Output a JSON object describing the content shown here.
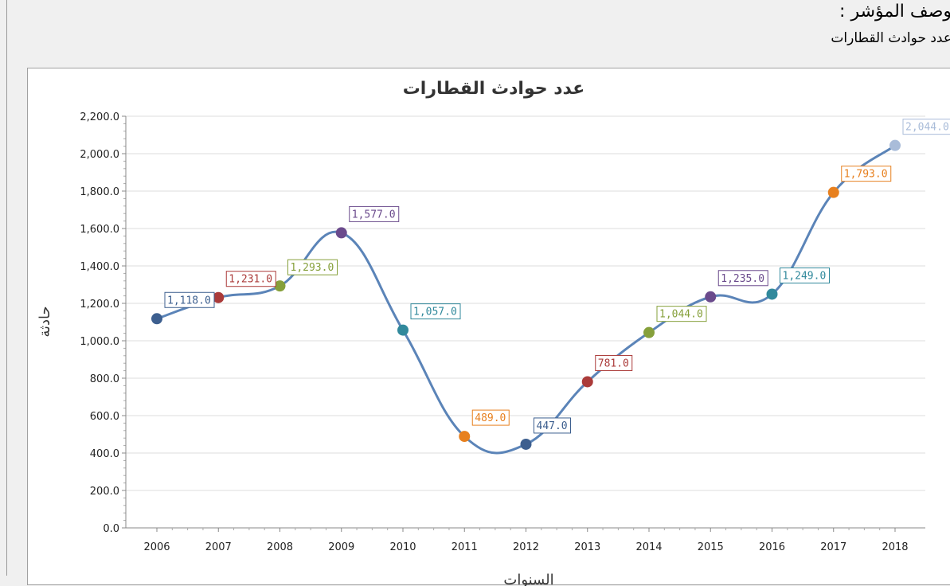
{
  "indicator": {
    "heading": "وصف المؤشر :",
    "value": "عدد حوادث القطارات"
  },
  "chart_data": {
    "type": "line",
    "title": "عدد حوادث القطارات",
    "xlabel": "السنوات",
    "ylabel": "حادثة",
    "categories": [
      "2006",
      "2007",
      "2008",
      "2009",
      "2010",
      "2011",
      "2012",
      "2013",
      "2014",
      "2015",
      "2016",
      "2017",
      "2018"
    ],
    "series": [
      {
        "values": [
          1118,
          1231,
          1293,
          1577,
          1057,
          489,
          447,
          781,
          1044,
          1235,
          1249,
          1793,
          2044
        ]
      }
    ],
    "data_labels": [
      "1,118.0",
      "1,231.0",
      "1,293.0",
      "1,577.0",
      "1,057.0",
      "489.0",
      "447.0",
      "781.0",
      "1,044.0",
      "1,235.0",
      "1,249.0",
      "1,793.0",
      "2,044.0"
    ],
    "ylim": [
      0,
      2200
    ],
    "yticks": [
      "0.0",
      "200.0",
      "400.0",
      "600.0",
      "800.0",
      "1,000.0",
      "1,200.0",
      "1,400.0",
      "1,600.0",
      "1,800.0",
      "2,000.0",
      "2,200.0"
    ],
    "grid": true,
    "line_color": "#5b84b8",
    "point_colors": [
      "#3d5f8f",
      "#ab3b3a",
      "#86a03b",
      "#6a4a8c",
      "#31899c",
      "#e7801f",
      "#3d5f8f",
      "#ab3b3a",
      "#86a03b",
      "#6a4a8c",
      "#31899c",
      "#e7801f",
      "#a9bcd9"
    ]
  }
}
